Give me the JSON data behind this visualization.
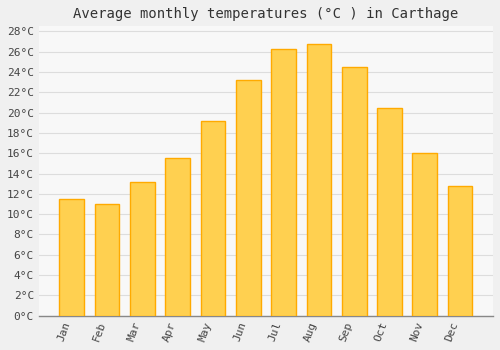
{
  "title": "Average monthly temperatures (°C ) in Carthage",
  "months": [
    "Jan",
    "Feb",
    "Mar",
    "Apr",
    "May",
    "Jun",
    "Jul",
    "Aug",
    "Sep",
    "Oct",
    "Nov",
    "Dec"
  ],
  "temperatures": [
    11.5,
    11.0,
    13.2,
    15.5,
    19.2,
    23.2,
    26.3,
    26.8,
    24.5,
    20.5,
    16.0,
    12.8
  ],
  "bar_color": "#FFAA00",
  "bar_color_light": "#FFD050",
  "background_color": "#F0F0F0",
  "plot_bg_color": "#F8F8F8",
  "grid_color": "#DDDDDD",
  "ylim": [
    0,
    28
  ],
  "ytick_step": 2,
  "title_fontsize": 10,
  "tick_fontsize": 8,
  "font_family": "monospace"
}
